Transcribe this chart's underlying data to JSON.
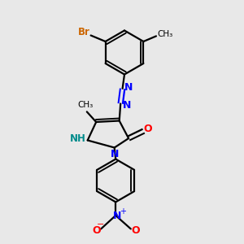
{
  "bg_color": "#e8e8e8",
  "bond_color": "#000000",
  "bond_width": 1.6,
  "N_color": "#0000ff",
  "O_color": "#ff0000",
  "Br_color": "#cc6600",
  "NH_color": "#008b8b",
  "figsize": [
    3.0,
    3.0
  ],
  "dpi": 100,
  "xlim": [
    0,
    10
  ],
  "ylim": [
    0,
    10
  ]
}
